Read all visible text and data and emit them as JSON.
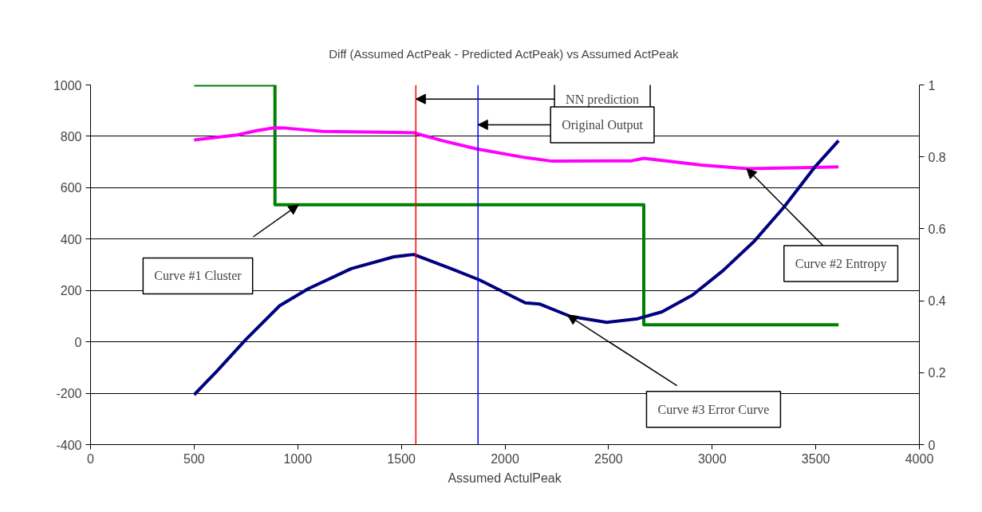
{
  "chart_data": {
    "type": "line",
    "title": "Diff (Assumed ActPeak - Predicted ActPeak) vs Assumed ActPeak",
    "xlabel": "Assumed ActulPeak",
    "xlim": [
      0,
      4000
    ],
    "xticks": [
      0,
      500,
      1000,
      1500,
      2000,
      2500,
      3000,
      3500,
      4000
    ],
    "ylim": [
      -400,
      1000
    ],
    "yticks": [
      -400,
      -200,
      0,
      200,
      400,
      600,
      800,
      1000
    ],
    "y2lim": [
      0,
      1
    ],
    "y2ticks": [
      0,
      0.2,
      0.4,
      0.6,
      0.8,
      1
    ],
    "grid": "y",
    "marker": "none",
    "line_style": "solid",
    "series": [
      {
        "type": "step",
        "axis": "y2",
        "color": "#008000",
        "x": [
          500,
          890,
          2670,
          3610
        ],
        "values": [
          1,
          0.667,
          0.333,
          0.333
        ]
      },
      {
        "axis": "y2",
        "color": "#ff00ff",
        "x": [
          500,
          707,
          803,
          886,
          941,
          1120,
          1560,
          1698,
          1864,
          2098,
          2228,
          2611,
          2670,
          2949,
          3170,
          3610
        ],
        "values": [
          0.847,
          0.861,
          0.873,
          0.881,
          0.88,
          0.871,
          0.867,
          0.845,
          0.822,
          0.798,
          0.788,
          0.789,
          0.796,
          0.777,
          0.767,
          0.772
        ]
      },
      {
        "color": "#000080",
        "x": [
          500,
          610,
          748,
          913,
          1051,
          1258,
          1464,
          1560,
          1740,
          1877,
          2098,
          2169,
          2316,
          2493,
          2640,
          2758,
          2905,
          3052,
          3200,
          3347,
          3494,
          3610
        ],
        "values": [
          -206,
          -114,
          8,
          141,
          207,
          285,
          331,
          340,
          285,
          241,
          152,
          147,
          99,
          76,
          90,
          117,
          182,
          277,
          389,
          525,
          679,
          783
        ]
      }
    ],
    "ref_lines": [
      {
        "axis": "x",
        "value": 1570,
        "label": "NN prediction",
        "color": "#ff0000"
      },
      {
        "axis": "x",
        "value": 1870,
        "label": "Original Output",
        "color": "#0000ff"
      }
    ],
    "annotations": [
      "Curve #1 Cluster",
      {
        "text": "Curve #2 Entropy",
        "x": 3167,
        "y": 674
      },
      "Curve #3 Error Curve"
    ]
  }
}
